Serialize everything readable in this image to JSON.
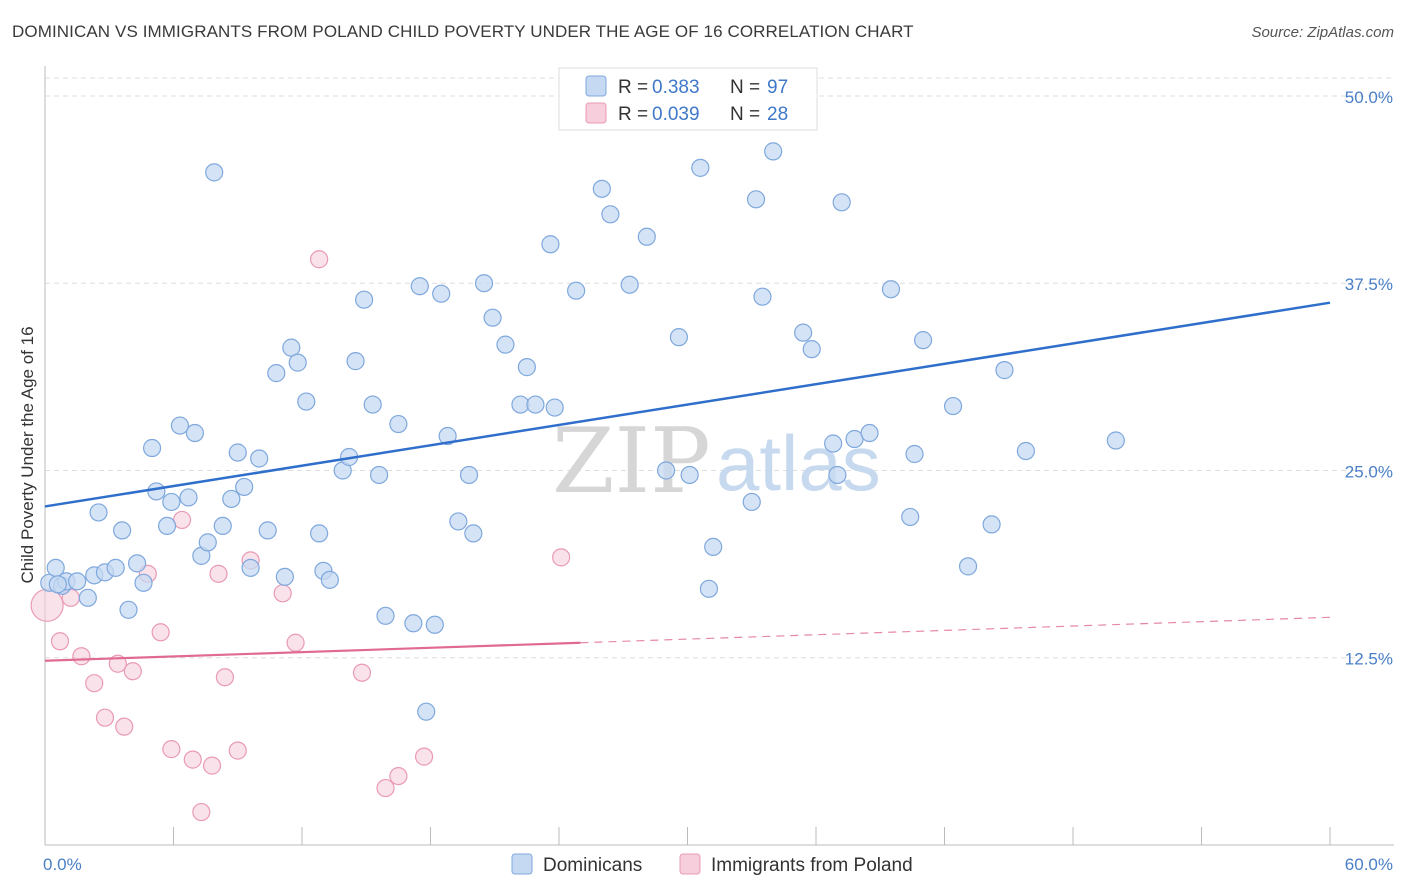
{
  "title": "DOMINICAN VS IMMIGRANTS FROM POLAND CHILD POVERTY UNDER THE AGE OF 16 CORRELATION CHART",
  "source": "Source: ZipAtlas.com",
  "watermark": {
    "zip": "ZIP",
    "atlas": "atlas"
  },
  "colors": {
    "blue_fill": "#c5d9f2",
    "blue_stroke": "#7fa8dd",
    "blue_line": "#2f6fcb",
    "pink_fill": "#f7cfdc",
    "pink_stroke": "#e99ab4",
    "pink_line": "#e06a92",
    "grid": "#dddddd",
    "tick_text": "#4a7fc8"
  },
  "legend": {
    "rows": [
      {
        "r_label": "R =",
        "r_value": "0.383",
        "n_label": "N =",
        "n_value": "97"
      },
      {
        "r_label": "R =",
        "r_value": "0.039",
        "n_label": "N =",
        "n_value": "28"
      }
    ]
  },
  "bottom_legend": [
    "Dominicans",
    "Immigrants from Poland"
  ],
  "chart_data": {
    "type": "scatter",
    "title": "DOMINICAN VS IMMIGRANTS FROM POLAND CHILD POVERTY UNDER THE AGE OF 16 CORRELATION CHART",
    "xlabel": "",
    "ylabel": "Child Poverty Under the Age of 16",
    "xlim": [
      0,
      60
    ],
    "ylim": [
      0,
      52
    ],
    "x_tick_labels": [
      "0.0%",
      "60.0%"
    ],
    "y_ticks": [
      12.5,
      25.0,
      37.5,
      50.0
    ],
    "y_tick_labels": [
      "12.5%",
      "25.0%",
      "37.5%",
      "50.0%"
    ],
    "grid": true,
    "legend_position": "top-center",
    "series": [
      {
        "name": "Dominicans",
        "color": "#c5d9f2",
        "trend": {
          "x": [
            0,
            60
          ],
          "y": [
            22.6,
            36.2
          ]
        },
        "points": [
          [
            0.2,
            17.5
          ],
          [
            0.5,
            18.5
          ],
          [
            0.8,
            17.3
          ],
          [
            1.0,
            17.6
          ],
          [
            1.5,
            17.6
          ],
          [
            2.0,
            16.5
          ],
          [
            2.3,
            18.0
          ],
          [
            2.5,
            22.2
          ],
          [
            2.8,
            18.2
          ],
          [
            3.3,
            18.5
          ],
          [
            3.6,
            21.0
          ],
          [
            3.9,
            15.7
          ],
          [
            4.3,
            18.8
          ],
          [
            4.6,
            17.5
          ],
          [
            5.0,
            26.5
          ],
          [
            5.2,
            23.6
          ],
          [
            5.7,
            21.3
          ],
          [
            5.9,
            22.9
          ],
          [
            6.3,
            28.0
          ],
          [
            6.7,
            23.2
          ],
          [
            7.0,
            27.5
          ],
          [
            7.3,
            19.3
          ],
          [
            7.6,
            20.2
          ],
          [
            7.9,
            44.9
          ],
          [
            8.3,
            21.3
          ],
          [
            8.7,
            23.1
          ],
          [
            9.0,
            26.2
          ],
          [
            9.3,
            23.9
          ],
          [
            9.6,
            18.5
          ],
          [
            10.0,
            25.8
          ],
          [
            10.4,
            21.0
          ],
          [
            10.8,
            31.5
          ],
          [
            11.2,
            17.9
          ],
          [
            11.5,
            33.2
          ],
          [
            11.8,
            32.2
          ],
          [
            12.2,
            29.6
          ],
          [
            12.8,
            20.8
          ],
          [
            13.0,
            18.3
          ],
          [
            13.3,
            17.7
          ],
          [
            13.9,
            25.0
          ],
          [
            14.2,
            25.9
          ],
          [
            14.5,
            32.3
          ],
          [
            14.9,
            36.4
          ],
          [
            15.3,
            29.4
          ],
          [
            15.6,
            24.7
          ],
          [
            15.9,
            15.3
          ],
          [
            16.5,
            28.1
          ],
          [
            17.2,
            14.8
          ],
          [
            17.5,
            37.3
          ],
          [
            17.8,
            8.9
          ],
          [
            18.2,
            14.7
          ],
          [
            18.5,
            36.8
          ],
          [
            18.8,
            27.3
          ],
          [
            19.3,
            21.6
          ],
          [
            19.8,
            24.7
          ],
          [
            20.0,
            20.8
          ],
          [
            20.5,
            37.5
          ],
          [
            20.9,
            35.2
          ],
          [
            21.5,
            33.4
          ],
          [
            22.2,
            29.4
          ],
          [
            22.5,
            31.9
          ],
          [
            22.9,
            29.4
          ],
          [
            23.6,
            40.1
          ],
          [
            23.8,
            29.2
          ],
          [
            24.8,
            37.0
          ],
          [
            26.0,
            43.8
          ],
          [
            26.4,
            42.1
          ],
          [
            27.3,
            37.4
          ],
          [
            28.1,
            40.6
          ],
          [
            29.0,
            25.0
          ],
          [
            29.6,
            33.9
          ],
          [
            30.1,
            24.7
          ],
          [
            30.6,
            45.2
          ],
          [
            31.2,
            19.9
          ],
          [
            31.0,
            17.1
          ],
          [
            33.2,
            43.1
          ],
          [
            33.0,
            22.9
          ],
          [
            34.0,
            46.3
          ],
          [
            33.5,
            36.6
          ],
          [
            35.4,
            34.2
          ],
          [
            35.8,
            33.1
          ],
          [
            36.8,
            26.8
          ],
          [
            37.0,
            24.7
          ],
          [
            37.2,
            42.9
          ],
          [
            37.8,
            27.1
          ],
          [
            38.5,
            27.5
          ],
          [
            39.5,
            37.1
          ],
          [
            40.6,
            26.1
          ],
          [
            40.4,
            21.9
          ],
          [
            41.0,
            33.7
          ],
          [
            42.4,
            29.3
          ],
          [
            43.1,
            18.6
          ],
          [
            44.2,
            21.4
          ],
          [
            44.8,
            31.7
          ],
          [
            45.8,
            26.3
          ],
          [
            50.0,
            27.0
          ],
          [
            0.6,
            17.4
          ]
        ]
      },
      {
        "name": "Immigrants from Poland",
        "color": "#f7cfdc",
        "trend": {
          "x": [
            0,
            25
          ],
          "y": [
            12.3,
            13.5
          ],
          "dashed_to": {
            "x": 60,
            "y": 15.2
          }
        },
        "points": [
          [
            0.1,
            16.0
          ],
          [
            0.7,
            13.6
          ],
          [
            1.2,
            16.5
          ],
          [
            1.7,
            12.6
          ],
          [
            2.3,
            10.8
          ],
          [
            2.8,
            8.5
          ],
          [
            3.4,
            12.1
          ],
          [
            3.7,
            7.9
          ],
          [
            4.1,
            11.6
          ],
          [
            4.8,
            18.1
          ],
          [
            5.4,
            14.2
          ],
          [
            5.9,
            6.4
          ],
          [
            6.4,
            21.7
          ],
          [
            6.9,
            5.7
          ],
          [
            7.3,
            2.2
          ],
          [
            7.8,
            5.3
          ],
          [
            8.1,
            18.1
          ],
          [
            8.4,
            11.2
          ],
          [
            9.0,
            6.3
          ],
          [
            9.6,
            19.0
          ],
          [
            11.1,
            16.8
          ],
          [
            11.7,
            13.5
          ],
          [
            12.8,
            39.1
          ],
          [
            14.8,
            11.5
          ],
          [
            15.9,
            3.8
          ],
          [
            16.5,
            4.6
          ],
          [
            17.7,
            5.9
          ],
          [
            24.1,
            19.2
          ]
        ]
      }
    ]
  }
}
